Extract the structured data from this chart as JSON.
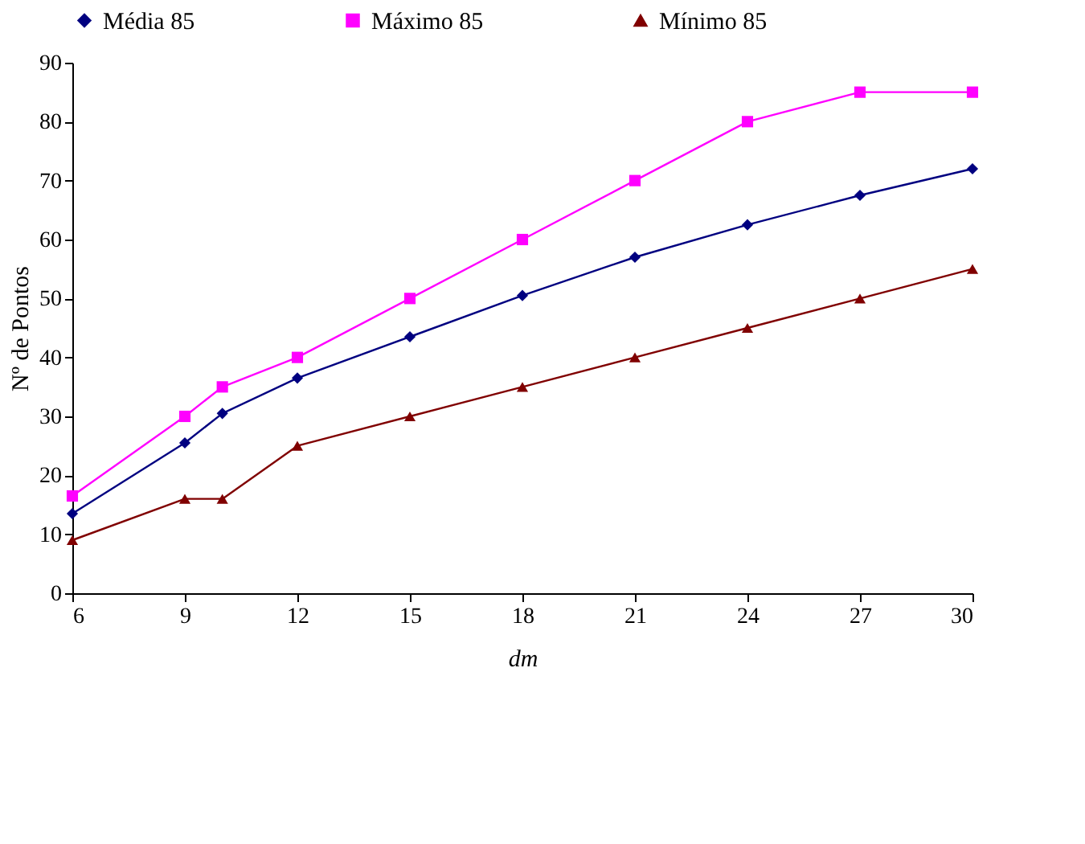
{
  "chart_data": {
    "type": "line",
    "xlabel": "dm",
    "ylabel": "Nº de  Pontos",
    "x": [
      6,
      9,
      10,
      12,
      15,
      18,
      21,
      24,
      27,
      30
    ],
    "series": [
      {
        "name": "Média 85",
        "color": "#000080",
        "marker": "diamond",
        "values": [
          13.5,
          25.5,
          30.5,
          36.5,
          43.5,
          50.5,
          57,
          62.5,
          67.5,
          72
        ]
      },
      {
        "name": "Máximo 85",
        "color": "#ff00ff",
        "marker": "square",
        "values": [
          16.5,
          30,
          35,
          40,
          50,
          60,
          70,
          80,
          85,
          85
        ]
      },
      {
        "name": "Mínimo 85",
        "color": "#800000",
        "marker": "triangle",
        "values": [
          9,
          16,
          16,
          25,
          30,
          35,
          40,
          45,
          50,
          55
        ]
      }
    ],
    "xlim": [
      6,
      30
    ],
    "xticks": [
      6,
      9,
      12,
      15,
      18,
      21,
      24,
      27,
      30
    ],
    "ylim": [
      0,
      90
    ],
    "yticks": [
      0,
      10,
      20,
      30,
      40,
      50,
      60,
      70,
      80,
      90
    ],
    "grid": false,
    "legend": "top",
    "line_style": "solid"
  }
}
